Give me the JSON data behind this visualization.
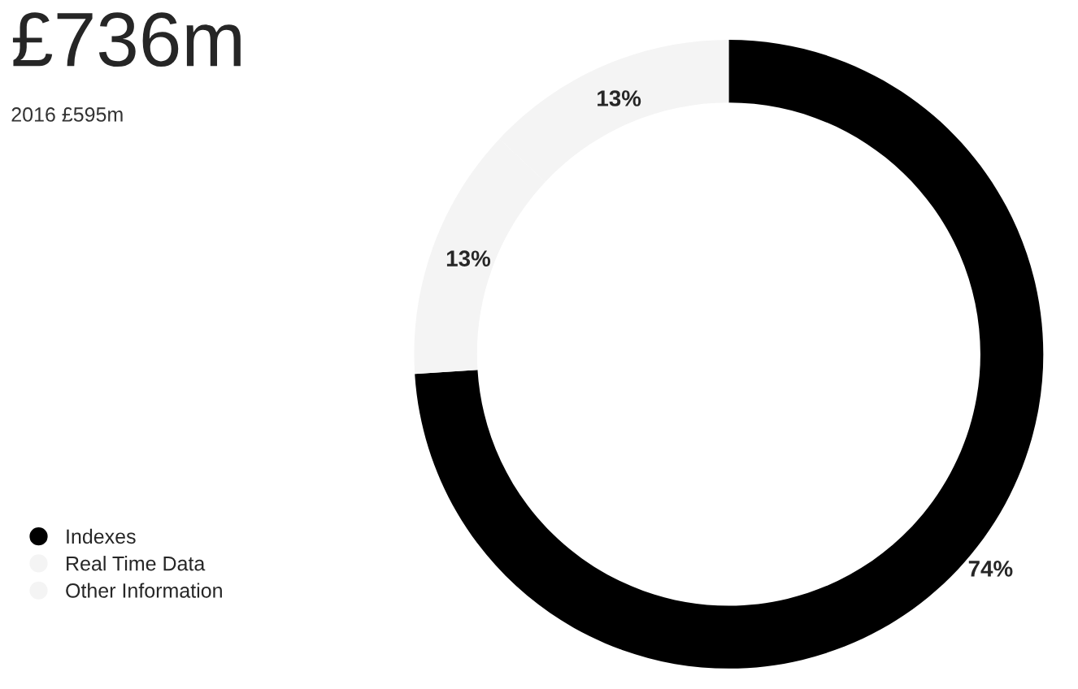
{
  "chart_data": {
    "type": "donut",
    "title": "£736m",
    "subtitle": "2016 £595m",
    "categories": [
      "Indexes",
      "Real Time Data",
      "Other Information"
    ],
    "values": [
      74,
      13,
      13
    ],
    "colors": [
      "#000000",
      "#f4f4f4",
      "#f4f4f4"
    ],
    "value_labels": [
      "74%",
      "13%",
      "13%"
    ],
    "legend": "bottom left"
  }
}
